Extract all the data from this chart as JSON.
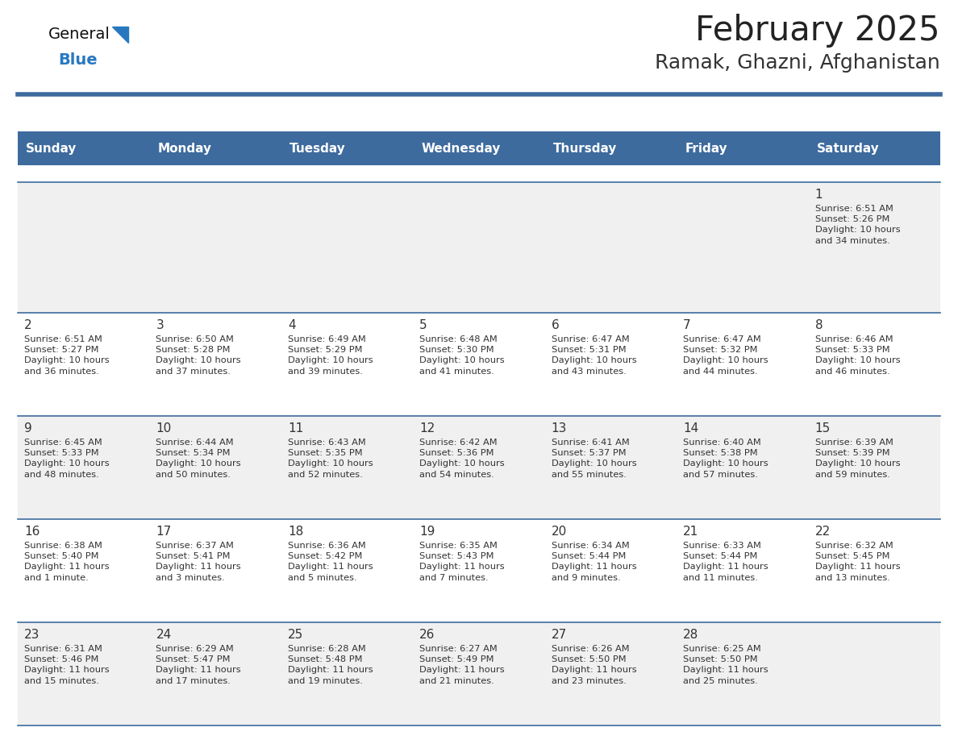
{
  "title": "February 2025",
  "subtitle": "Ramak, Ghazni, Afghanistan",
  "days_of_week": [
    "Sunday",
    "Monday",
    "Tuesday",
    "Wednesday",
    "Thursday",
    "Friday",
    "Saturday"
  ],
  "header_bg": "#3d6b9e",
  "header_fg": "#ffffff",
  "cell_bg_light": "#f0f0f0",
  "cell_bg_white": "#ffffff",
  "grid_line_color": "#3d6b9e",
  "text_color": "#333333",
  "day_num_color": "#333333",
  "title_color": "#222222",
  "subtitle_color": "#333333",
  "logo_general_color": "#111111",
  "logo_blue_color": "#2878c0",
  "calendar_data": [
    [
      null,
      null,
      null,
      null,
      null,
      null,
      {
        "day": 1,
        "sunrise": "6:51 AM",
        "sunset": "5:26 PM",
        "daylight": "10 hours\nand 34 minutes."
      }
    ],
    [
      {
        "day": 2,
        "sunrise": "6:51 AM",
        "sunset": "5:27 PM",
        "daylight": "10 hours\nand 36 minutes."
      },
      {
        "day": 3,
        "sunrise": "6:50 AM",
        "sunset": "5:28 PM",
        "daylight": "10 hours\nand 37 minutes."
      },
      {
        "day": 4,
        "sunrise": "6:49 AM",
        "sunset": "5:29 PM",
        "daylight": "10 hours\nand 39 minutes."
      },
      {
        "day": 5,
        "sunrise": "6:48 AM",
        "sunset": "5:30 PM",
        "daylight": "10 hours\nand 41 minutes."
      },
      {
        "day": 6,
        "sunrise": "6:47 AM",
        "sunset": "5:31 PM",
        "daylight": "10 hours\nand 43 minutes."
      },
      {
        "day": 7,
        "sunrise": "6:47 AM",
        "sunset": "5:32 PM",
        "daylight": "10 hours\nand 44 minutes."
      },
      {
        "day": 8,
        "sunrise": "6:46 AM",
        "sunset": "5:33 PM",
        "daylight": "10 hours\nand 46 minutes."
      }
    ],
    [
      {
        "day": 9,
        "sunrise": "6:45 AM",
        "sunset": "5:33 PM",
        "daylight": "10 hours\nand 48 minutes."
      },
      {
        "day": 10,
        "sunrise": "6:44 AM",
        "sunset": "5:34 PM",
        "daylight": "10 hours\nand 50 minutes."
      },
      {
        "day": 11,
        "sunrise": "6:43 AM",
        "sunset": "5:35 PM",
        "daylight": "10 hours\nand 52 minutes."
      },
      {
        "day": 12,
        "sunrise": "6:42 AM",
        "sunset": "5:36 PM",
        "daylight": "10 hours\nand 54 minutes."
      },
      {
        "day": 13,
        "sunrise": "6:41 AM",
        "sunset": "5:37 PM",
        "daylight": "10 hours\nand 55 minutes."
      },
      {
        "day": 14,
        "sunrise": "6:40 AM",
        "sunset": "5:38 PM",
        "daylight": "10 hours\nand 57 minutes."
      },
      {
        "day": 15,
        "sunrise": "6:39 AM",
        "sunset": "5:39 PM",
        "daylight": "10 hours\nand 59 minutes."
      }
    ],
    [
      {
        "day": 16,
        "sunrise": "6:38 AM",
        "sunset": "5:40 PM",
        "daylight": "11 hours\nand 1 minute."
      },
      {
        "day": 17,
        "sunrise": "6:37 AM",
        "sunset": "5:41 PM",
        "daylight": "11 hours\nand 3 minutes."
      },
      {
        "day": 18,
        "sunrise": "6:36 AM",
        "sunset": "5:42 PM",
        "daylight": "11 hours\nand 5 minutes."
      },
      {
        "day": 19,
        "sunrise": "6:35 AM",
        "sunset": "5:43 PM",
        "daylight": "11 hours\nand 7 minutes."
      },
      {
        "day": 20,
        "sunrise": "6:34 AM",
        "sunset": "5:44 PM",
        "daylight": "11 hours\nand 9 minutes."
      },
      {
        "day": 21,
        "sunrise": "6:33 AM",
        "sunset": "5:44 PM",
        "daylight": "11 hours\nand 11 minutes."
      },
      {
        "day": 22,
        "sunrise": "6:32 AM",
        "sunset": "5:45 PM",
        "daylight": "11 hours\nand 13 minutes."
      }
    ],
    [
      {
        "day": 23,
        "sunrise": "6:31 AM",
        "sunset": "5:46 PM",
        "daylight": "11 hours\nand 15 minutes."
      },
      {
        "day": 24,
        "sunrise": "6:29 AM",
        "sunset": "5:47 PM",
        "daylight": "11 hours\nand 17 minutes."
      },
      {
        "day": 25,
        "sunrise": "6:28 AM",
        "sunset": "5:48 PM",
        "daylight": "11 hours\nand 19 minutes."
      },
      {
        "day": 26,
        "sunrise": "6:27 AM",
        "sunset": "5:49 PM",
        "daylight": "11 hours\nand 21 minutes."
      },
      {
        "day": 27,
        "sunrise": "6:26 AM",
        "sunset": "5:50 PM",
        "daylight": "11 hours\nand 23 minutes."
      },
      {
        "day": 28,
        "sunrise": "6:25 AM",
        "sunset": "5:50 PM",
        "daylight": "11 hours\nand 25 minutes."
      },
      null
    ]
  ],
  "num_weeks": 5,
  "week_row_heights": [
    1.6,
    1.35,
    1.35,
    1.35,
    1.35
  ]
}
